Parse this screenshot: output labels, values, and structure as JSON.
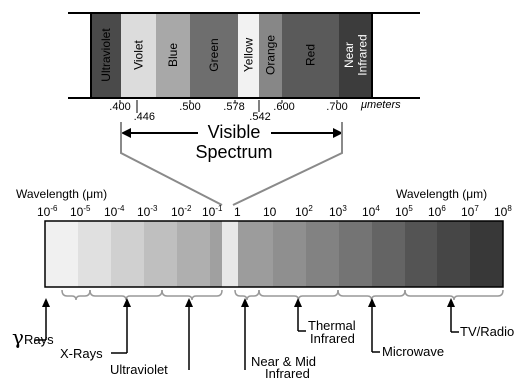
{
  "top_spectrum": {
    "bands": [
      {
        "label": "Ultraviolet",
        "color": "#4a4a4a",
        "text_color": "#000000"
      },
      {
        "label": "Violet",
        "color": "#dcdcdc",
        "text_color": "#000000"
      },
      {
        "label": "Blue",
        "color": "#a8a8a8",
        "text_color": "#000000"
      },
      {
        "label": "Green",
        "color": "#6e6e6e",
        "text_color": "#000000"
      },
      {
        "label": "Yellow",
        "color": "#f2f2f2",
        "text_color": "#000000"
      },
      {
        "label": "Orange",
        "color": "#878787",
        "text_color": "#000000"
      },
      {
        "label": "Red",
        "color": "#5a5a5a",
        "text_color": "#000000"
      },
      {
        "label": "Near Infrared",
        "color": "#3c3c3c",
        "text_color": "#ffffff"
      }
    ],
    "tick_labels": [
      ".400",
      ".446",
      ".500",
      ".578",
      ".542",
      ".600",
      ".700"
    ],
    "unit": "μmeters"
  },
  "visible_label": {
    "line1": "Visible",
    "line2": "Spectrum"
  },
  "bottom_spectrum": {
    "left_title": "Wavelength (μm)",
    "right_title": "Wavelength (μm)",
    "scale_left": [
      {
        "base": "10",
        "exp": "-6"
      },
      {
        "base": "10",
        "exp": "-5"
      },
      {
        "base": "10",
        "exp": "-4"
      },
      {
        "base": "10",
        "exp": "-3"
      },
      {
        "base": "10",
        "exp": "-2"
      },
      {
        "base": "10",
        "exp": "-1"
      }
    ],
    "scale_right": [
      {
        "base": "1",
        "exp": ""
      },
      {
        "base": "10",
        "exp": ""
      },
      {
        "base": "10",
        "exp": "2"
      },
      {
        "base": "10",
        "exp": "3"
      },
      {
        "base": "10",
        "exp": "4"
      },
      {
        "base": "10",
        "exp": "5"
      },
      {
        "base": "10",
        "exp": "6"
      },
      {
        "base": "10",
        "exp": "7"
      },
      {
        "base": "10",
        "exp": "8"
      }
    ],
    "segment_colors": [
      "#f0f0f0",
      "#e0e0e0",
      "#d0d0d0",
      "#bfbfbf",
      "#afafaf",
      "#a0a0a0",
      "#e8e8e8",
      "#9c9c9c",
      "#8f8f8f",
      "#828282",
      "#747474",
      "#646464",
      "#545454",
      "#464646",
      "#383838",
      "#262626"
    ]
  },
  "regions": [
    {
      "label": "Rays",
      "symbol": "γ"
    },
    {
      "label": "X-Rays"
    },
    {
      "label": "Ultraviolet"
    },
    {
      "label": "Near & Mid",
      "label2": "Infrared"
    },
    {
      "label": "Thermal",
      "label2": "Infrared"
    },
    {
      "label": "Microwave"
    },
    {
      "label": "TV/Radio"
    }
  ]
}
